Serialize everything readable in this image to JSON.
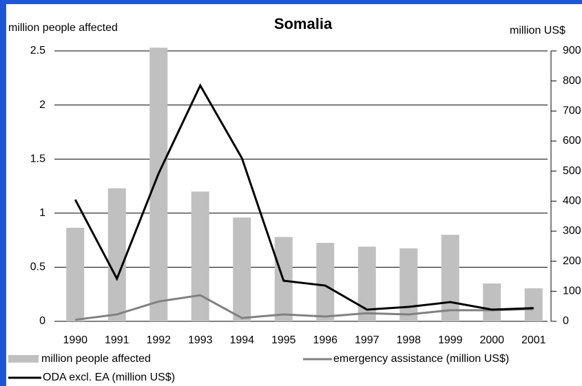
{
  "chart_data": {
    "type": "bar-line",
    "title": "Somalia",
    "ylabel": "million people affected",
    "y2label": "million US$",
    "categories": [
      "1990",
      "1991",
      "1992",
      "1993",
      "1994",
      "1995",
      "1996",
      "1997",
      "1998",
      "1999",
      "2000",
      "2001"
    ],
    "series": [
      {
        "name": "million people affected",
        "type": "bar",
        "color": "#c0c0c0",
        "values": [
          0.865,
          1.23,
          2.53,
          1.2,
          0.96,
          0.78,
          0.725,
          0.69,
          0.675,
          0.8,
          0.35,
          0.305
        ]
      },
      {
        "name": "emergency assistance (million US$)",
        "type": "line",
        "axis": "y2",
        "color": "#808080",
        "values": [
          5,
          23,
          66,
          87,
          11,
          23,
          16,
          27,
          23,
          37,
          37,
          41
        ]
      },
      {
        "name": "ODA excl. EA (million US$)",
        "type": "line",
        "axis": "y2",
        "color": "#000000",
        "values": [
          405,
          142,
          492,
          785,
          543,
          135,
          119,
          39,
          48,
          64,
          39,
          44
        ]
      }
    ],
    "ylim": [
      0,
      2.5
    ],
    "yticks": [
      0,
      0.5,
      1,
      1.5,
      2,
      2.5
    ],
    "y2lim": [
      0,
      900
    ],
    "y2ticks": [
      0,
      100,
      200,
      300,
      400,
      500,
      600,
      700,
      800,
      900
    ],
    "grid": true
  }
}
